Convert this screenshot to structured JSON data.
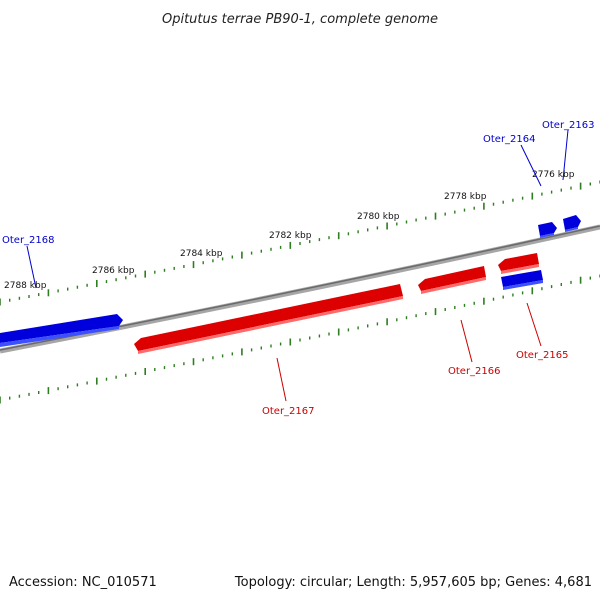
{
  "title": "Opitutus terrae PB90-1, complete genome",
  "footer": {
    "accession": "Accession: NC_010571",
    "summary": "Topology: circular; Length: 5,957,605 bp; Genes: 4,681"
  },
  "colors": {
    "forward_gene": "#0000ee",
    "reverse_gene": "#ee0000",
    "backbone": "#808080",
    "ticks": "#2e7d20",
    "forward_label": "#0000cc",
    "reverse_label": "#cc0000"
  },
  "position_labels": [
    {
      "text": "2776 kbp"
    },
    {
      "text": "2778 kbp"
    },
    {
      "text": "2780 kbp"
    },
    {
      "text": "2782 kbp"
    },
    {
      "text": "2784 kbp"
    },
    {
      "text": "2786 kbp"
    },
    {
      "text": "2788 kbp"
    }
  ],
  "genes": [
    {
      "name": "Oter_2163",
      "strand": "forward"
    },
    {
      "name": "Oter_2164",
      "strand": "forward"
    },
    {
      "name": "Oter_2165",
      "strand": "reverse"
    },
    {
      "name": "Oter_2166",
      "strand": "reverse"
    },
    {
      "name": "Oter_2167",
      "strand": "reverse"
    },
    {
      "name": "Oter_2168",
      "strand": "forward"
    }
  ]
}
